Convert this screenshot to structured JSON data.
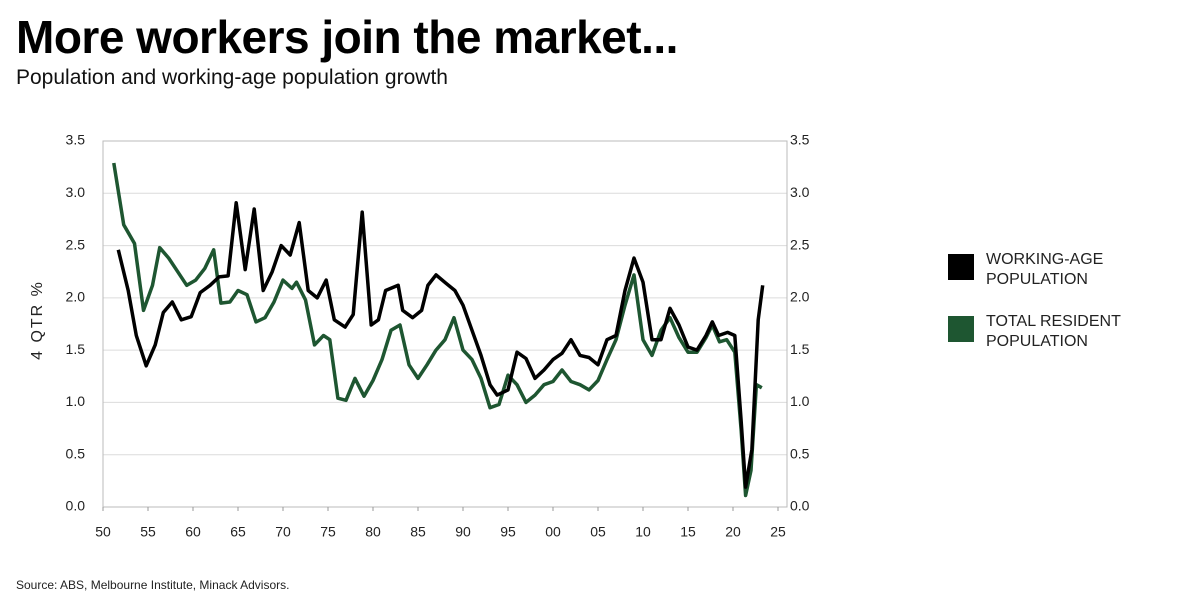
{
  "chart_data": {
    "type": "line",
    "title": "More workers join the market...",
    "subtitle": "Population and working-age population growth",
    "ylabel": "4 QTR %",
    "source": "Source: ABS, Melbourne Institute, Minack Advisors.",
    "xlim": [
      1950,
      2026
    ],
    "xticks": [
      {
        "value": 1950,
        "label": "50"
      },
      {
        "value": 1955,
        "label": "55"
      },
      {
        "value": 1960,
        "label": "60"
      },
      {
        "value": 1965,
        "label": "65"
      },
      {
        "value": 1970,
        "label": "70"
      },
      {
        "value": 1975,
        "label": "75"
      },
      {
        "value": 1980,
        "label": "80"
      },
      {
        "value": 1985,
        "label": "85"
      },
      {
        "value": 1990,
        "label": "90"
      },
      {
        "value": 1995,
        "label": "95"
      },
      {
        "value": 2000,
        "label": "00"
      },
      {
        "value": 2005,
        "label": "05"
      },
      {
        "value": 2010,
        "label": "10"
      },
      {
        "value": 2015,
        "label": "15"
      },
      {
        "value": 2020,
        "label": "20"
      },
      {
        "value": 2025,
        "label": "25"
      }
    ],
    "ylim": [
      0,
      3.5
    ],
    "yticks": [
      {
        "value": 0,
        "label": "0.0"
      },
      0.5,
      {
        "value": 1,
        "label": "1.0"
      },
      1.5,
      {
        "value": 2,
        "label": "2.0"
      },
      2.5,
      {
        "value": 3,
        "label": "3.0"
      },
      3.5
    ],
    "y2lim": [
      0,
      3.5
    ],
    "y2ticks": [
      {
        "value": 0,
        "label": "0.0"
      },
      0.5,
      {
        "value": 1,
        "label": "1.0"
      },
      1.5,
      {
        "value": 2,
        "label": "2.0"
      },
      2.5,
      {
        "value": 3,
        "label": "3.0"
      },
      3.5
    ],
    "grid": true,
    "legend": "right",
    "series": [
      {
        "name": "WORKING-AGE POPULATION",
        "color": "#000000",
        "x": [
          1951.7,
          1952.8,
          1953.7,
          1954.8,
          1955.8,
          1956.7,
          1957.7,
          1958.7,
          1959.8,
          1960.8,
          1961.9,
          1962.9,
          1963.9,
          1964.8,
          1965.8,
          1966.8,
          1967.8,
          1968.8,
          1969.8,
          1970.8,
          1971.8,
          1972.8,
          1973.8,
          1974.8,
          1975.7,
          1976.9,
          1977.8,
          1978.8,
          1979.8,
          1980.6,
          1981.4,
          1982.8,
          1983.3,
          1984.4,
          1985.4,
          1986.1,
          1987,
          1988.1,
          1989.1,
          1990,
          1991,
          1992,
          1993,
          1993.8,
          1995,
          1996,
          1997,
          1998,
          1999,
          2000,
          2001,
          2002,
          2003,
          2004,
          2005,
          2006,
          2007,
          2008,
          2009,
          2010,
          2011,
          2012,
          2013,
          2014,
          2015,
          2016,
          2017,
          2017.7,
          2018.4,
          2019.4,
          2020.2,
          2020.9,
          2021.4,
          2022.1,
          2022.8,
          2023.3
        ],
        "values": [
          2.46,
          2.07,
          1.64,
          1.35,
          1.55,
          1.86,
          1.96,
          1.79,
          1.82,
          2.05,
          2.12,
          2.2,
          2.21,
          2.91,
          2.27,
          2.85,
          2.07,
          2.25,
          2.5,
          2.41,
          2.72,
          2.07,
          2.0,
          2.17,
          1.79,
          1.72,
          1.84,
          2.82,
          1.74,
          1.79,
          2.07,
          2.12,
          1.88,
          1.81,
          1.88,
          2.12,
          2.22,
          2.14,
          2.07,
          1.93,
          1.69,
          1.45,
          1.17,
          1.07,
          1.12,
          1.48,
          1.42,
          1.23,
          1.31,
          1.41,
          1.47,
          1.6,
          1.45,
          1.43,
          1.36,
          1.6,
          1.64,
          2.07,
          2.38,
          2.15,
          1.6,
          1.6,
          1.9,
          1.74,
          1.53,
          1.5,
          1.64,
          1.77,
          1.64,
          1.67,
          1.64,
          0.83,
          0.19,
          0.55,
          1.79,
          2.12
        ]
      },
      {
        "name": "TOTAL RESIDENT POPULATION",
        "color": "#1e5631",
        "x": [
          1951.2,
          1952.3,
          1953.5,
          1954.5,
          1955.5,
          1956.3,
          1957.3,
          1958.3,
          1959.3,
          1960.3,
          1961.3,
          1962.3,
          1963.1,
          1964.1,
          1965,
          1966,
          1967,
          1968,
          1969,
          1970,
          1971,
          1971.5,
          1972.5,
          1973.5,
          1974.5,
          1975.2,
          1976.1,
          1977,
          1978,
          1979,
          1980,
          1981,
          1982,
          1983,
          1984,
          1985,
          1986,
          1987,
          1988,
          1989,
          1990,
          1991,
          1992,
          1993,
          1994,
          1995,
          1996,
          1997,
          1998,
          1999,
          2000,
          2001,
          2002,
          2003,
          2004,
          2005,
          2006,
          2007,
          2008,
          2009,
          2010,
          2011,
          2012,
          2013,
          2014,
          2015,
          2016,
          2017,
          2017.7,
          2018.5,
          2019.3,
          2020.2,
          2020.9,
          2021.4,
          2022,
          2022.6,
          2023.2
        ],
        "values": [
          3.29,
          2.7,
          2.52,
          1.88,
          2.12,
          2.48,
          2.38,
          2.25,
          2.12,
          2.17,
          2.28,
          2.46,
          1.95,
          1.96,
          2.07,
          2.03,
          1.77,
          1.81,
          1.96,
          2.17,
          2.09,
          2.15,
          1.98,
          1.55,
          1.64,
          1.6,
          1.04,
          1.02,
          1.23,
          1.06,
          1.21,
          1.41,
          1.69,
          1.74,
          1.36,
          1.23,
          1.36,
          1.5,
          1.6,
          1.81,
          1.5,
          1.41,
          1.23,
          0.95,
          0.98,
          1.26,
          1.17,
          1.0,
          1.07,
          1.17,
          1.2,
          1.31,
          1.2,
          1.17,
          1.12,
          1.21,
          1.41,
          1.6,
          1.93,
          2.22,
          1.6,
          1.45,
          1.69,
          1.81,
          1.62,
          1.48,
          1.48,
          1.62,
          1.74,
          1.58,
          1.6,
          1.48,
          0.74,
          0.11,
          0.35,
          1.17,
          1.14
        ]
      }
    ]
  }
}
